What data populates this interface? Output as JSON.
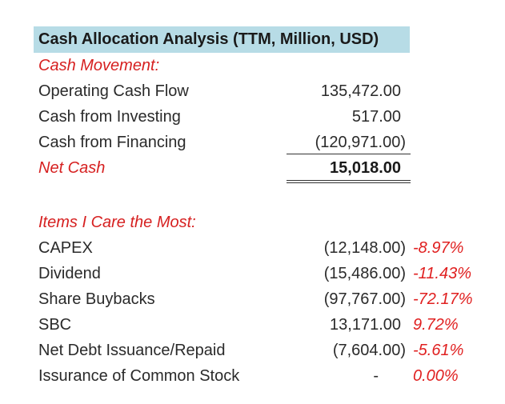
{
  "title": "Cash Allocation Analysis (TTM, Million, USD)",
  "cash_movement": {
    "header": "Cash Movement:",
    "rows": [
      {
        "label": "Operating Cash Flow",
        "value": "135,472.00"
      },
      {
        "label": "Cash from Investing",
        "value": "517.00"
      },
      {
        "label": "Cash from Financing",
        "value": "(120,971.00)"
      }
    ],
    "net": {
      "label": "Net Cash",
      "value": "15,018.00"
    }
  },
  "items": {
    "header": "Items I Care the Most:",
    "rows": [
      {
        "label": "CAPEX",
        "value": "(12,148.00)",
        "pct": "-8.97%"
      },
      {
        "label": "Dividend",
        "value": "(15,486.00)",
        "pct": "-11.43%"
      },
      {
        "label": "Share Buybacks",
        "value": "(97,767.00)",
        "pct": "-72.17%"
      },
      {
        "label": "SBC",
        "value": "13,171.00",
        "pct": "9.72%"
      },
      {
        "label": "Net Debt Issuance/Repaid",
        "value": "(7,604.00)",
        "pct": "-5.61%"
      },
      {
        "label": "Issurance of Common Stock",
        "value": "-",
        "pct": "0.00%"
      }
    ]
  },
  "colors": {
    "title_bg": "#b7dce6",
    "accent_red": "#d62020"
  }
}
